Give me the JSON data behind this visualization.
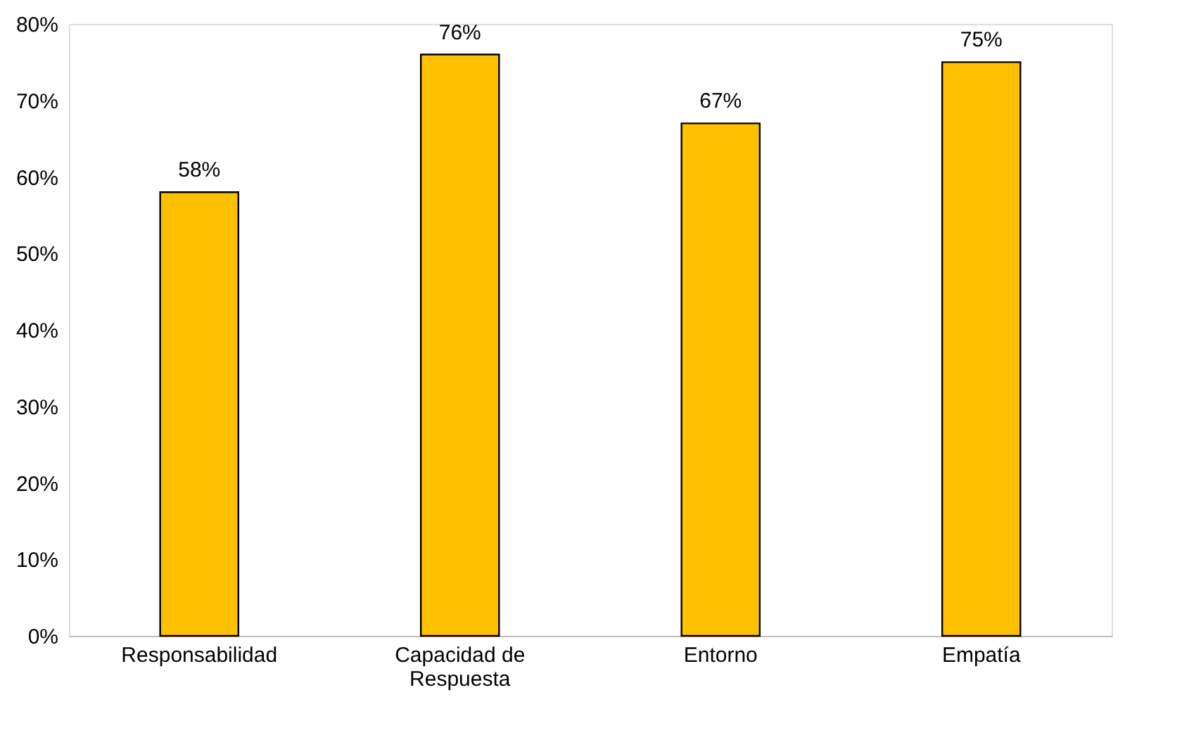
{
  "chart_data": {
    "type": "bar",
    "categories": [
      "Responsabilidad",
      "Capacidad de Respuesta",
      "Entorno",
      "Empatía"
    ],
    "values": [
      58,
      76,
      67,
      75
    ],
    "color": "#ffc000",
    "value_labels": [
      "58%",
      "76%",
      "67%",
      "75%"
    ],
    "ylim": [
      0,
      80
    ],
    "yticks": [
      {
        "value": 0,
        "label": "0%"
      },
      {
        "value": 10,
        "label": "10%"
      },
      {
        "value": 20,
        "label": "20%"
      },
      {
        "value": 30,
        "label": "30%"
      },
      {
        "value": 40,
        "label": "40%"
      },
      {
        "value": 50,
        "label": "50%"
      },
      {
        "value": 60,
        "label": "60%"
      },
      {
        "value": 70,
        "label": "70%"
      },
      {
        "value": 80,
        "label": "80%"
      }
    ],
    "grid": false
  }
}
